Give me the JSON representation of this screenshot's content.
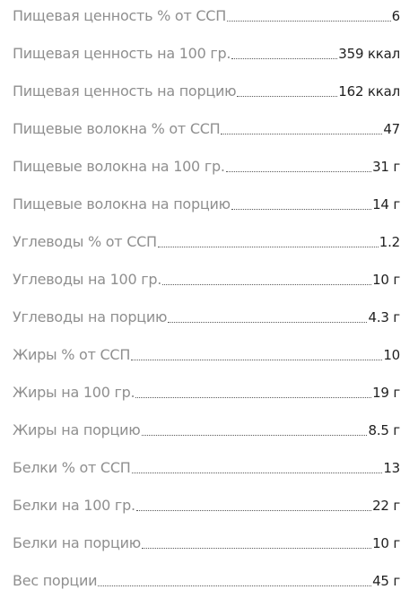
{
  "nutrition": {
    "rows": [
      {
        "label": "Пищевая ценность % от ССП",
        "value": "6"
      },
      {
        "label": "Пищевая ценность на 100 гр.",
        "value": "359 ккал"
      },
      {
        "label": "Пищевая ценность на порцию",
        "value": "162 ккал"
      },
      {
        "label": "Пищевые волокна % от ССП",
        "value": "47"
      },
      {
        "label": "Пищевые волокна на 100 гр.",
        "value": "31 г"
      },
      {
        "label": "Пищевые волокна на порцию",
        "value": "14 г"
      },
      {
        "label": "Углеводы % от ССП",
        "value": "1.2"
      },
      {
        "label": "Углеводы на 100 гр.",
        "value": "10 г"
      },
      {
        "label": "Углеводы на порцию",
        "value": "4.3 г"
      },
      {
        "label": "Жиры % от ССП",
        "value": "10"
      },
      {
        "label": "Жиры на 100 гр.",
        "value": "19 г"
      },
      {
        "label": "Жиры на порцию",
        "value": "8.5 г"
      },
      {
        "label": "Белки % от ССП",
        "value": "13"
      },
      {
        "label": "Белки на 100 гр.",
        "value": "22 г"
      },
      {
        "label": "Белки на порцию",
        "value": "10 г"
      },
      {
        "label": "Вес порции",
        "value": "45 г"
      }
    ]
  }
}
